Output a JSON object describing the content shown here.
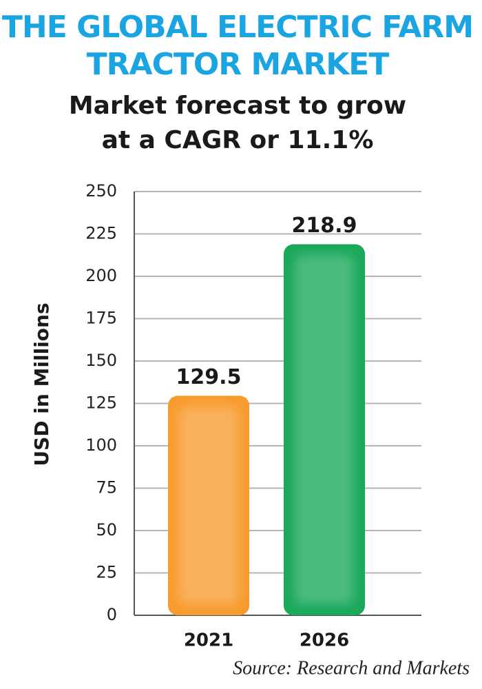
{
  "chart_data": {
    "type": "bar",
    "title": [
      "THE GLOBAL ELECTRIC FARM",
      "TRACTOR MARKET"
    ],
    "subtitle": [
      "Market forecast to grow",
      "at a CAGR or 11.1%"
    ],
    "y_label": "USD in Millions",
    "source": "Source: Research and Markets",
    "categories": [
      "2021",
      "2026"
    ],
    "values": [
      129.5,
      218.9
    ],
    "colors": [
      "#f79b2e",
      "#1aa85a"
    ],
    "ylim": [
      0,
      250
    ],
    "yticks": [
      0,
      25,
      50,
      75,
      100,
      125,
      150,
      175,
      200,
      225,
      250
    ],
    "grid": true
  }
}
